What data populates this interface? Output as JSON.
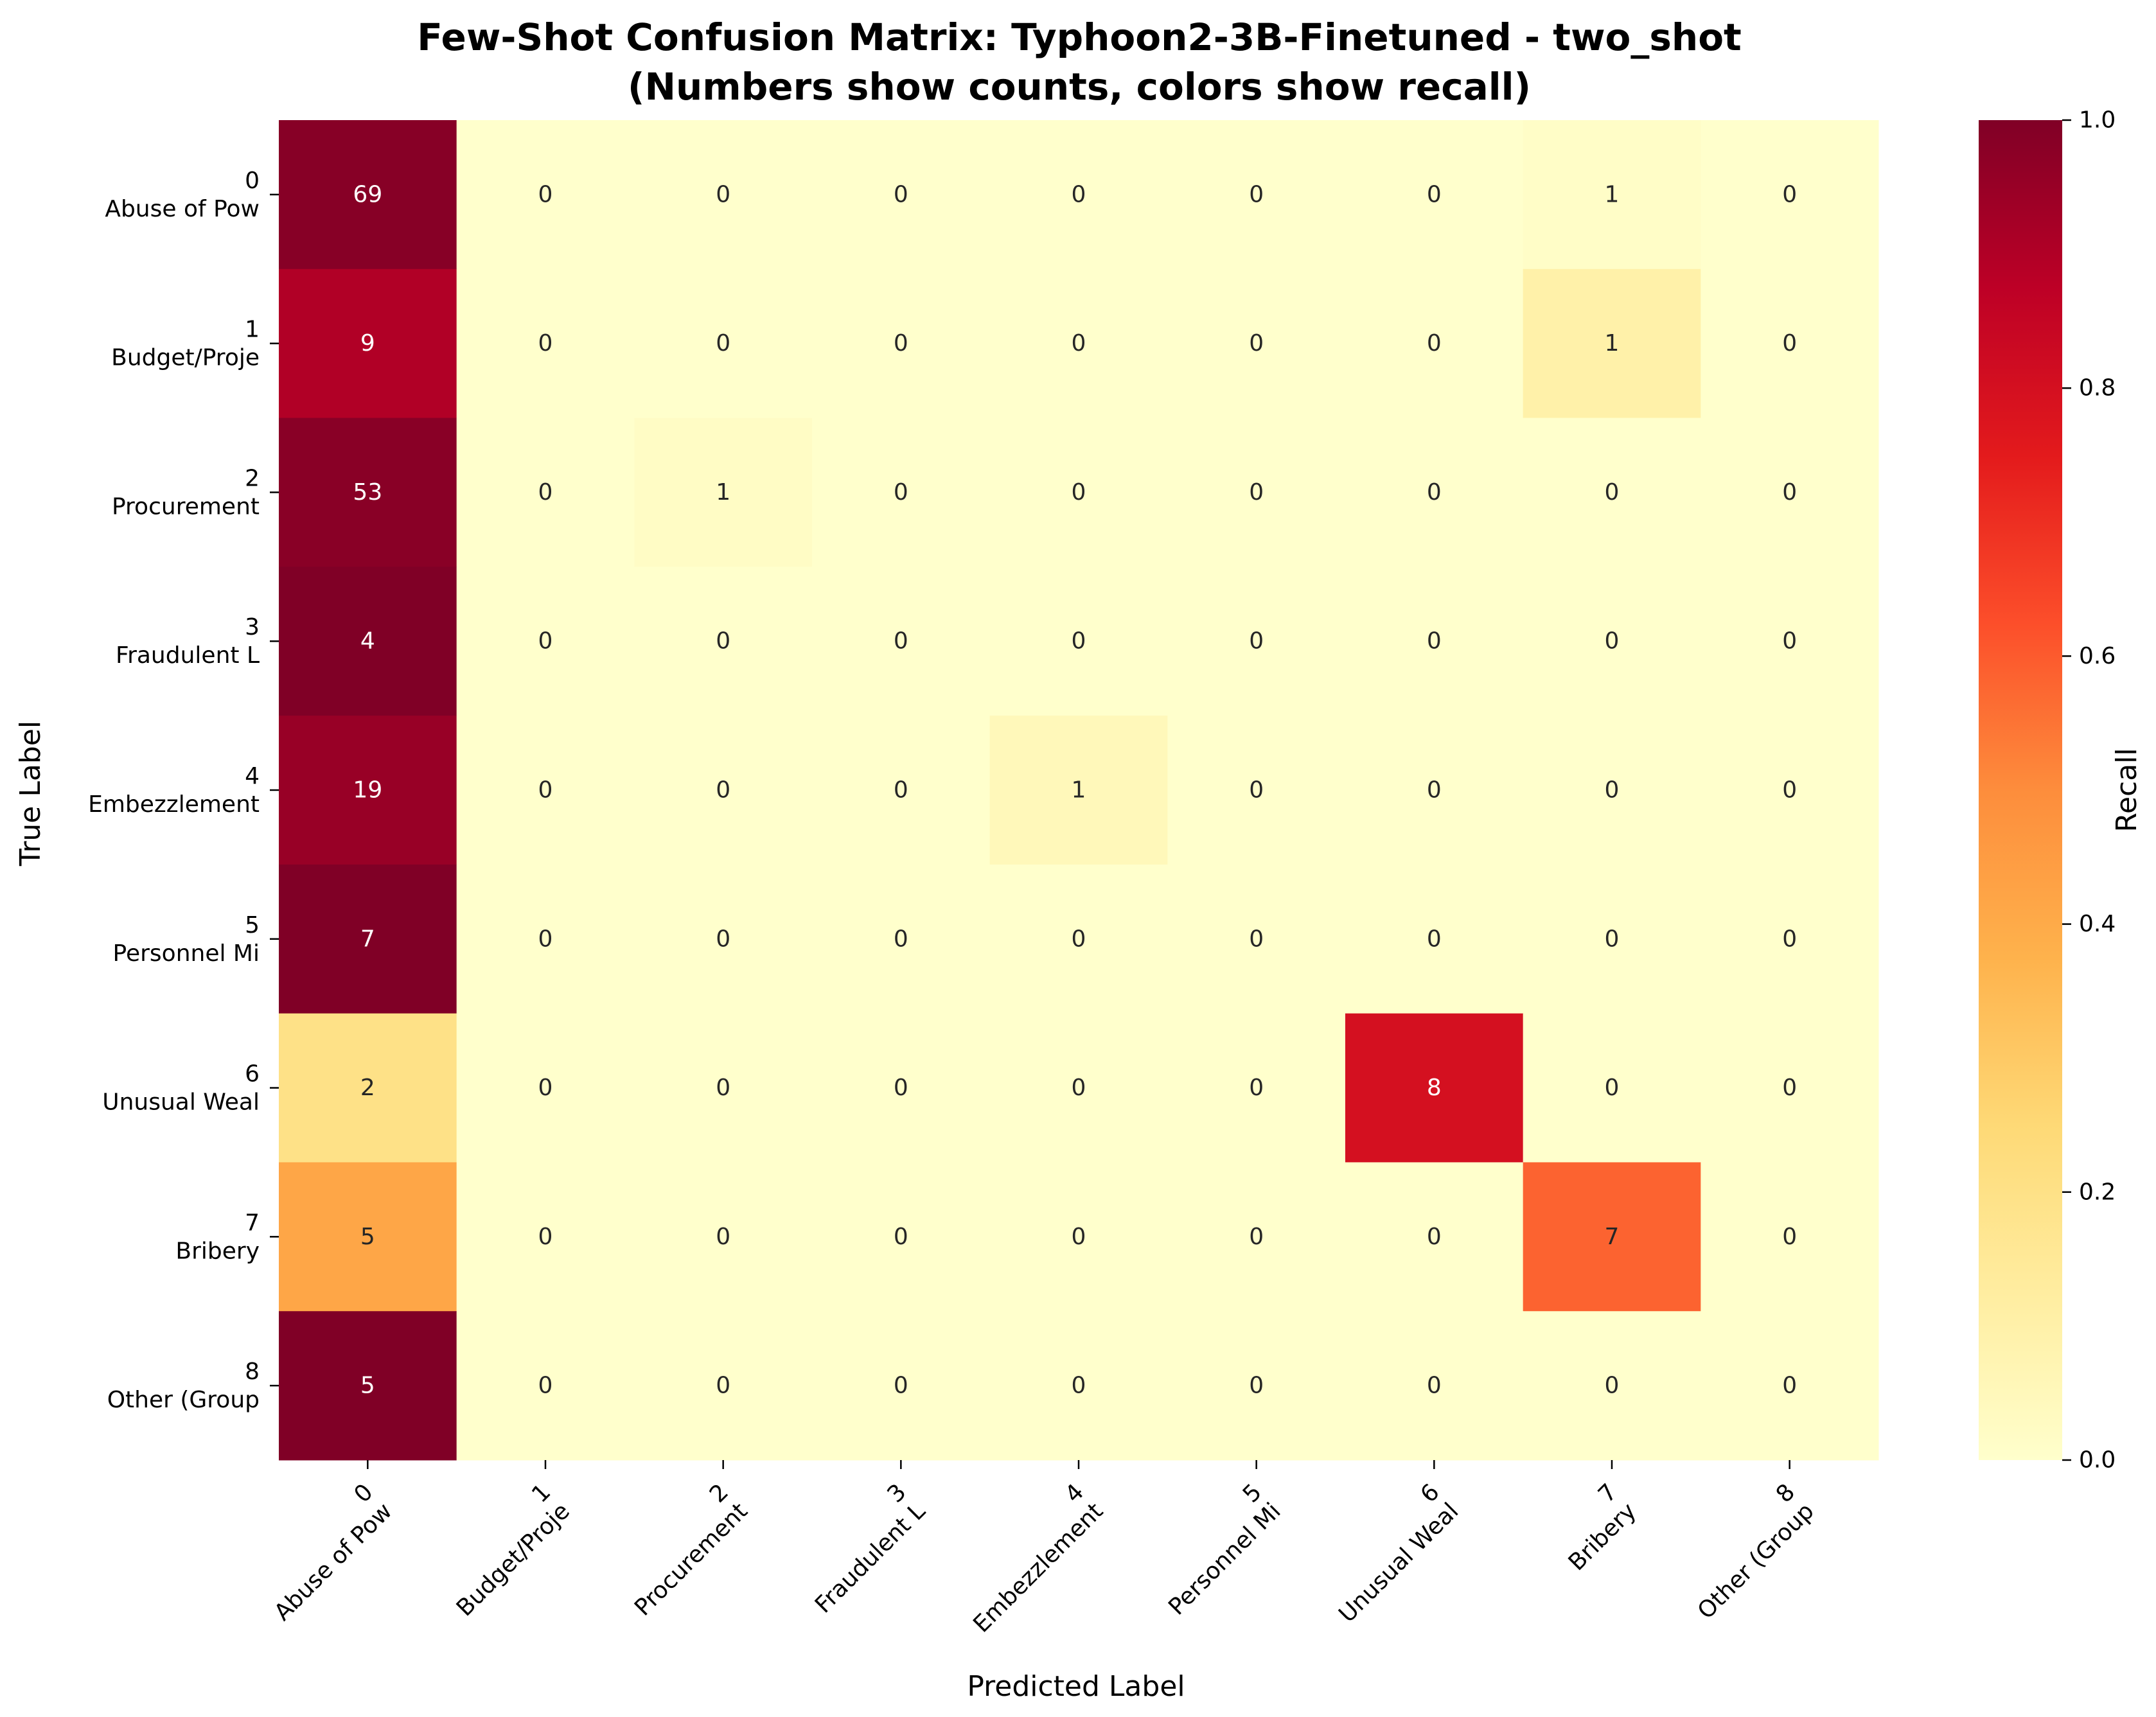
{
  "chart_data": {
    "type": "heatmap",
    "title_line1": "Few-Shot Confusion Matrix: Typhoon2-3B-Finetuned - two_shot",
    "title_line2": "(Numbers show counts, colors show recall)",
    "xlabel": "Predicted Label",
    "ylabel": "True Label",
    "colorbar_label": "Recall",
    "colorbar_ticks": [
      "0.0",
      "0.2",
      "0.4",
      "0.6",
      "0.8",
      "1.0"
    ],
    "vmin": 0.0,
    "vmax": 1.0,
    "colormap": "YlOrRd",
    "class_ids": [
      "0",
      "1",
      "2",
      "3",
      "4",
      "5",
      "6",
      "7",
      "8"
    ],
    "class_names": [
      "Abuse of Pow",
      "Budget/Proje",
      "Procurement ",
      "Fraudulent L",
      "Embezzlement",
      "Personnel Mi",
      "Unusual Weal",
      "Bribery",
      "Other (Group"
    ],
    "counts": [
      [
        69,
        0,
        0,
        0,
        0,
        0,
        0,
        1,
        0
      ],
      [
        9,
        0,
        0,
        0,
        0,
        0,
        0,
        1,
        0
      ],
      [
        53,
        0,
        1,
        0,
        0,
        0,
        0,
        0,
        0
      ],
      [
        4,
        0,
        0,
        0,
        0,
        0,
        0,
        0,
        0
      ],
      [
        19,
        0,
        0,
        0,
        1,
        0,
        0,
        0,
        0
      ],
      [
        7,
        0,
        0,
        0,
        0,
        0,
        0,
        0,
        0
      ],
      [
        2,
        0,
        0,
        0,
        0,
        0,
        8,
        0,
        0
      ],
      [
        5,
        0,
        0,
        0,
        0,
        0,
        0,
        7,
        0
      ],
      [
        5,
        0,
        0,
        0,
        0,
        0,
        0,
        0,
        0
      ]
    ]
  }
}
